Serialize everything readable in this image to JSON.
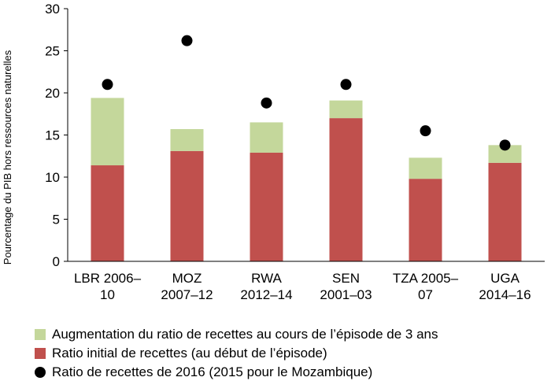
{
  "chart_data": {
    "type": "bar",
    "stacked": true,
    "ylabel": "Pourcentage du PIB hors ressources naturelles",
    "ylim": [
      0,
      30
    ],
    "yticks": [
      "0",
      "5",
      "10",
      "15",
      "20",
      "25",
      "30"
    ],
    "categories": [
      [
        "LBR 2006–",
        "10"
      ],
      [
        "MOZ",
        "2007–12"
      ],
      [
        "RWA",
        "2012–14"
      ],
      [
        "SEN",
        "2001–03"
      ],
      [
        "TZA 2005–",
        "07"
      ],
      [
        "UGA",
        "2014–16"
      ]
    ],
    "series": [
      {
        "name": "Ratio initial de recettes (au début de l’épisode)",
        "kind": "bar",
        "color": "#c0504d",
        "values": [
          11.4,
          13.1,
          12.9,
          17.0,
          9.8,
          11.7
        ]
      },
      {
        "name": "Augmentation du ratio de recettes au cours de l’épisode de 3 ans",
        "kind": "bar",
        "color": "#c4d79b",
        "values": [
          8.0,
          2.6,
          3.6,
          2.1,
          2.5,
          2.1
        ]
      },
      {
        "name": "Ratio de recettes de 2016 (2015 pour le Mozambique)",
        "kind": "marker",
        "color": "#000000",
        "values": [
          21.0,
          26.2,
          18.8,
          21.0,
          15.5,
          13.8
        ]
      }
    ],
    "grid": false,
    "legend_placement": "bottom"
  }
}
